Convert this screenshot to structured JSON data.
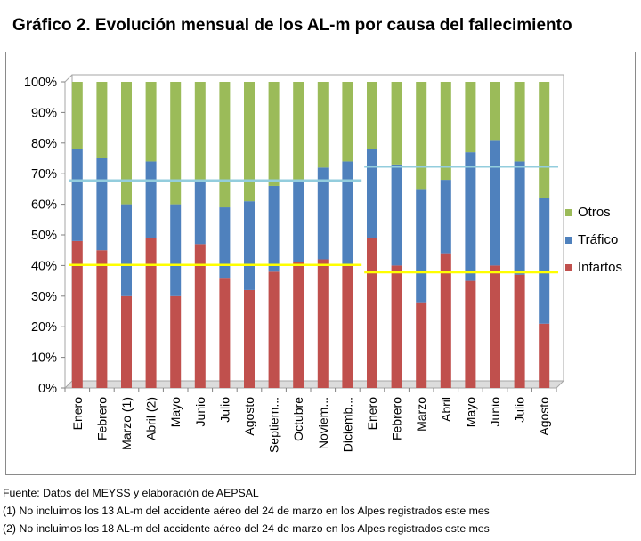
{
  "chart_data": {
    "type": "bar",
    "stacked": "percent",
    "title": "Gráfico 2. Evolución mensual de los AL-m por causa del fallecimiento",
    "categories": [
      "Enero",
      "Febrero",
      "Marzo (1)",
      "Abril  (2)",
      "Mayo",
      "Junio",
      "Julio",
      "Agosto",
      "Septiem...",
      "Octubre",
      "Noviem...",
      "Diciemb...",
      "Enero",
      "Febrero",
      "Marzo",
      "Abril",
      "Mayo",
      "Junio",
      "Julio",
      "Agosto"
    ],
    "series": [
      {
        "name": "Infartos",
        "color": "#c0504d",
        "values": [
          48,
          45,
          30,
          49,
          30,
          47,
          36,
          32,
          38,
          41,
          42,
          40,
          49,
          40,
          28,
          44,
          35,
          40,
          37,
          21
        ]
      },
      {
        "name": "Tráfico",
        "color": "#4f81bd",
        "values": [
          30,
          30,
          30,
          25,
          30,
          21,
          23,
          29,
          28,
          27,
          30,
          34,
          29,
          33,
          37,
          24,
          42,
          41,
          37,
          41
        ]
      },
      {
        "name": "Otros",
        "color": "#9bbb59",
        "values": [
          22,
          25,
          40,
          26,
          40,
          32,
          41,
          39,
          34,
          32,
          28,
          26,
          22,
          27,
          35,
          32,
          23,
          19,
          26,
          38
        ]
      }
    ],
    "averages": [
      {
        "series": "Otros",
        "color": "#93cddd",
        "segments": [
          {
            "from": 0,
            "to": 11,
            "value": 67.8
          },
          {
            "from": 12,
            "to": 19,
            "value": 72.3
          }
        ]
      },
      {
        "series": "Infartos",
        "color": "#ffff00",
        "segments": [
          {
            "from": 0,
            "to": 11,
            "value": 40.2
          },
          {
            "from": 12,
            "to": 19,
            "value": 37.8
          }
        ]
      }
    ],
    "y_ticks": [
      "0%",
      "10%",
      "20%",
      "30%",
      "40%",
      "50%",
      "60%",
      "70%",
      "80%",
      "90%",
      "100%"
    ],
    "ylim": [
      0,
      100
    ],
    "legend": {
      "position": "right",
      "entries": [
        "Otros",
        "Tráfico",
        "Infartos"
      ]
    },
    "grid": false
  },
  "notes": {
    "source": "Fuente: Datos del MEYSS y elaboración de AEPSAL",
    "note1": "(1) No incluimos los 13 AL-m del accidente aéreo del 24 de marzo en los Alpes registrados este mes",
    "note2": "(2) No incluimos los 18 AL-m del accidente aéreo del 24 de marzo en los Alpes registrados este mes"
  }
}
